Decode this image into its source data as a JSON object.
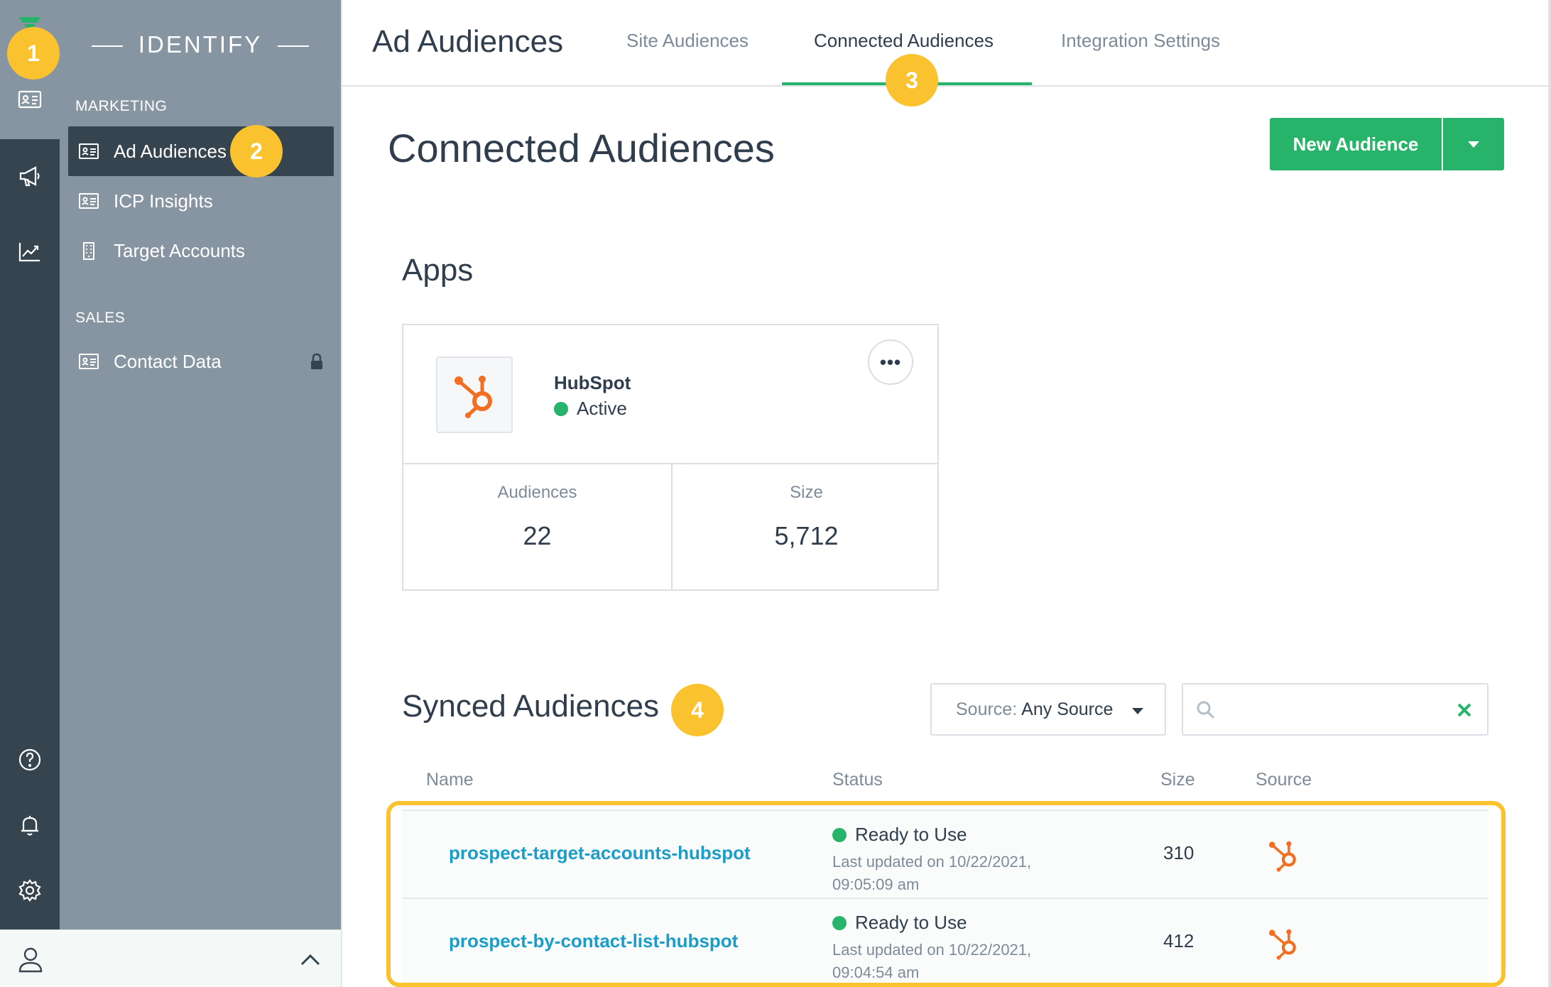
{
  "brand": {
    "accent": "#27b36a",
    "badge": "#f9c22e",
    "link": "#1a9ec9",
    "rail": "#36444f",
    "nav": "#8795a2"
  },
  "rail": {
    "icons": [
      "contact-card-icon",
      "megaphone-icon",
      "trend-chart-icon",
      "help-icon",
      "bell-icon",
      "gear-icon"
    ]
  },
  "nav": {
    "title": "IDENTIFY",
    "marketing_label": "MARKETING",
    "sales_label": "SALES",
    "items": [
      {
        "label": "Ad Audiences",
        "icon": "contact-card-icon"
      },
      {
        "label": "ICP Insights",
        "icon": "contact-card-icon"
      },
      {
        "label": "Target Accounts",
        "icon": "building-icon"
      },
      {
        "label": "Contact Data",
        "icon": "contact-card-icon"
      }
    ]
  },
  "header": {
    "title": "Ad Audiences",
    "tabs": [
      {
        "label": "Site Audiences"
      },
      {
        "label": "Connected Audiences"
      },
      {
        "label": "Integration Settings"
      }
    ]
  },
  "page": {
    "title": "Connected Audiences",
    "new_button": "New Audience"
  },
  "apps": {
    "heading": "Apps",
    "card": {
      "name": "HubSpot",
      "status": "Active",
      "more": "•••",
      "audiences_label": "Audiences",
      "audiences_value": "22",
      "size_label": "Size",
      "size_value": "5,712"
    }
  },
  "synced": {
    "heading": "Synced Audiences",
    "source_label": "Source:",
    "source_value": "Any Source",
    "search_placeholder": "",
    "columns": {
      "name": "Name",
      "status": "Status",
      "size": "Size",
      "source": "Source"
    },
    "rows": [
      {
        "name": "prospect-target-accounts-hubspot",
        "status": "Ready to Use",
        "updated": "Last updated on 10/22/2021, 09:05:09 am",
        "size": "310",
        "source": "hubspot-icon"
      },
      {
        "name": "prospect-by-contact-list-hubspot",
        "status": "Ready to Use",
        "updated": "Last updated on 10/22/2021, 09:04:54 am",
        "size": "412",
        "source": "hubspot-icon"
      }
    ]
  },
  "badges": [
    "1",
    "2",
    "3",
    "4"
  ]
}
